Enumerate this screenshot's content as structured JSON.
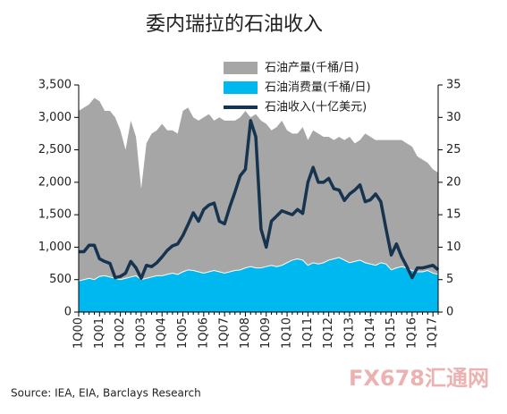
{
  "chart_data": {
    "type": "area_line",
    "title": "委内瑞拉的石油收入",
    "source": "Source: IEA, EIA, Barclays Research",
    "watermark": "FX678汇通网",
    "categories": [
      "1Q00",
      null,
      null,
      null,
      "1Q01",
      null,
      null,
      null,
      "1Q02",
      null,
      null,
      null,
      "1Q03",
      null,
      null,
      null,
      "1Q04",
      null,
      null,
      null,
      "1Q05",
      null,
      null,
      null,
      "1Q06",
      null,
      null,
      null,
      "1Q07",
      null,
      null,
      null,
      "1Q08",
      null,
      null,
      null,
      "1Q09",
      null,
      null,
      null,
      "1Q10",
      null,
      null,
      null,
      "1Q11",
      null,
      null,
      null,
      "1Q12",
      null,
      null,
      null,
      "1Q13",
      null,
      null,
      null,
      "1Q14",
      null,
      null,
      null,
      "1Q15",
      null,
      null,
      null,
      "1Q16",
      null,
      null,
      null,
      "1Q17",
      null
    ],
    "series": [
      {
        "name": "石油产量(千桶/日)",
        "color": "#a6a6a6",
        "kind": "area",
        "values": [
          3100,
          3150,
          3200,
          3300,
          3250,
          3100,
          3100,
          3000,
          2800,
          2500,
          2950,
          2700,
          1900,
          2600,
          2750,
          2800,
          2900,
          2800,
          2800,
          2750,
          3100,
          3150,
          3000,
          2950,
          3000,
          3050,
          2950,
          3000,
          2950,
          2950,
          2950,
          3000,
          3100,
          3000,
          3050,
          2950,
          2900,
          2800,
          2850,
          2950,
          2800,
          2750,
          2750,
          2850,
          2650,
          2800,
          2750,
          2700,
          2700,
          2650,
          2700,
          2650,
          2700,
          2600,
          2650,
          2750,
          2700,
          2650,
          2650,
          2650,
          2650,
          2650,
          2650,
          2600,
          2550,
          2400,
          2350,
          2300,
          2200,
          2150
        ]
      },
      {
        "name": "石油消费量(千桶/日)",
        "color": "#00b8f0",
        "kind": "area",
        "values": [
          480,
          500,
          520,
          500,
          550,
          560,
          540,
          520,
          500,
          520,
          540,
          560,
          500,
          520,
          540,
          560,
          560,
          580,
          600,
          580,
          620,
          650,
          640,
          620,
          600,
          620,
          640,
          620,
          600,
          620,
          640,
          650,
          680,
          700,
          680,
          680,
          700,
          720,
          700,
          720,
          760,
          800,
          820,
          800,
          720,
          760,
          740,
          760,
          800,
          820,
          840,
          800,
          760,
          780,
          800,
          760,
          740,
          720,
          760,
          740,
          650,
          680,
          700,
          680,
          640,
          620,
          620,
          640,
          600,
          580
        ]
      },
      {
        "name": "石油收入(十亿美元)",
        "color": "#16334f",
        "kind": "line",
        "axis": "y2",
        "values": [
          9.3,
          9.3,
          10.3,
          10.3,
          8.2,
          7.8,
          7.5,
          5.3,
          5.5,
          6.0,
          7.8,
          6.8,
          5.2,
          7.2,
          7.0,
          7.6,
          8.5,
          9.5,
          10.2,
          10.5,
          11.8,
          13.5,
          15.3,
          14.0,
          15.8,
          16.5,
          16.8,
          14.0,
          13.6,
          16.2,
          18.5,
          21.0,
          22.0,
          29.5,
          27.0,
          12.8,
          10.0,
          14.0,
          14.8,
          15.6,
          15.3,
          15.0,
          15.8,
          15.2,
          20.0,
          22.3,
          20.0,
          20.0,
          20.6,
          19.0,
          18.8,
          17.2,
          18.2,
          18.8,
          19.6,
          17.0,
          17.3,
          18.2,
          17.0,
          12.8,
          8.8,
          10.5,
          8.5,
          7.0,
          5.3,
          6.8,
          6.8,
          7.0,
          7.2,
          6.5
        ]
      }
    ],
    "ylim": [
      0,
      3500
    ],
    "yticks": [
      0,
      500,
      {
        "value": 1000,
        "label": "1,000"
      },
      {
        "value": 1500,
        "label": "1,500"
      },
      {
        "value": 2000,
        "label": "2,000"
      },
      {
        "value": 2500,
        "label": "2,500"
      },
      {
        "value": 3000,
        "label": "3,000"
      },
      {
        "value": 3500,
        "label": "3,500"
      }
    ],
    "y2lim": [
      0,
      35
    ],
    "y2ticks": [
      0,
      5,
      10,
      15,
      20,
      25,
      30,
      35
    ],
    "legend": "top"
  }
}
